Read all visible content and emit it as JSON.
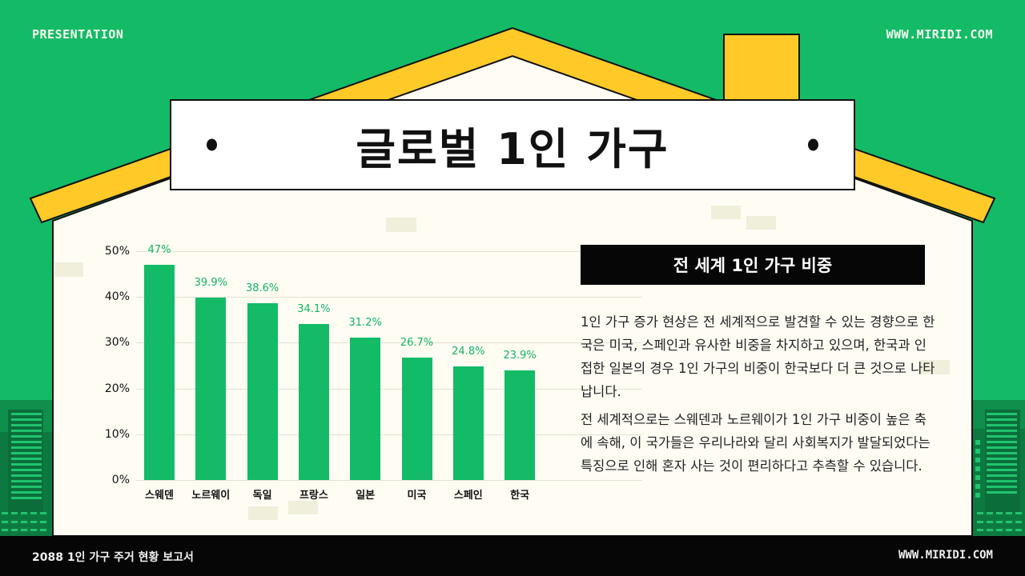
{
  "header": {
    "left_label": "PRESENTATION",
    "right_label": "WWW.MIRIDI.COM"
  },
  "title": "글로벌 1인 가구",
  "side_panel": {
    "heading": "전 세계 1인 가구 비중",
    "paragraphs": [
      "1인 가구 증가 현상은 전 세계적으로 발견할 수 있는 경향으로 한국은 미국, 스페인과 유사한 비중을 차지하고 있으며, 한국과 인접한 일본의 경우 1인 가구의 비중이 한국보다 더 큰 것으로 나타납니다.",
      "전 세계적으로는 스웨덴과 노르웨이가 1인 가구 비중이 높은 축에 속해, 이 국가들은 우리나라와 달리 사회복지가 발달되었다는 특징으로 인해 혼자 사는 것이 편리하다고 추측할 수 있습니다."
    ]
  },
  "footer": {
    "left_label": "2088 1인 가구 주거 현황 보고서",
    "right_label": "WWW.MIRIDI.COM"
  },
  "colors": {
    "background_green": "#13bb66",
    "roof_yellow": "#ffca28",
    "house_cream": "#fefcf3",
    "bar_green": "#13bb66",
    "label_green": "#13b366",
    "dark": "#060606"
  },
  "chart_data": {
    "type": "bar",
    "title": "전 세계 1인 가구 비중",
    "categories": [
      "스웨덴",
      "노르웨이",
      "독일",
      "프랑스",
      "일본",
      "미국",
      "스페인",
      "한국"
    ],
    "values": [
      47,
      39.9,
      38.6,
      34.1,
      31.2,
      26.7,
      24.8,
      23.9
    ],
    "value_labels": [
      "47%",
      "39.9%",
      "38.6%",
      "34.1%",
      "31.2%",
      "26.7%",
      "24.8%",
      "23.9%"
    ],
    "xlabel": "",
    "ylabel": "",
    "ylim": [
      0,
      50
    ],
    "yticks": [
      "0%",
      "10%",
      "20%",
      "30%",
      "40%",
      "50%"
    ],
    "grid": true,
    "legend": "none"
  }
}
